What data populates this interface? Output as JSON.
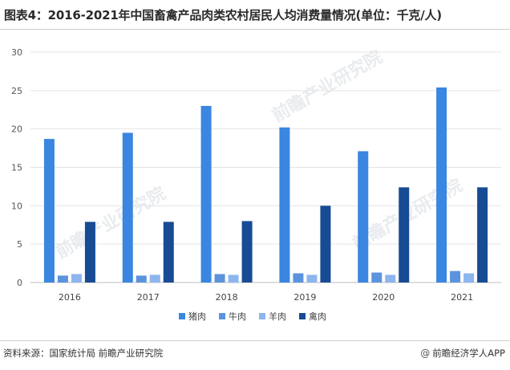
{
  "title": "图表4：2016-2021年中国畜禽产品肉类农村居民人均消费量情况(单位：千克/人)",
  "watermark": "前瞻产业研究院",
  "footer": {
    "source": "资料来源：国家统计局 前瞻产业研究院",
    "brand": "前瞻经济学人APP",
    "brand_icon": "at-icon"
  },
  "chart_data": {
    "type": "bar",
    "title": "图表4：2016-2021年中国畜禽产品肉类农村居民人均消费量情况(单位：千克/人)",
    "categories": [
      "2016",
      "2017",
      "2018",
      "2019",
      "2020",
      "2021"
    ],
    "series": [
      {
        "name": "猪肉",
        "color": "#3a86e0",
        "values": [
          18.7,
          19.5,
          23.0,
          20.2,
          17.1,
          25.4
        ]
      },
      {
        "name": "牛肉",
        "color": "#5b93dd",
        "values": [
          0.9,
          0.9,
          1.1,
          1.2,
          1.3,
          1.5
        ]
      },
      {
        "name": "羊肉",
        "color": "#8db5ee",
        "values": [
          1.1,
          1.0,
          1.0,
          1.0,
          1.0,
          1.2
        ]
      },
      {
        "name": "禽肉",
        "color": "#174b94",
        "values": [
          7.9,
          7.9,
          8.0,
          10.0,
          12.4,
          12.4
        ]
      }
    ],
    "ylim": [
      0,
      30
    ],
    "yticks": [
      0,
      5,
      10,
      15,
      20,
      25,
      30
    ],
    "grid": true,
    "legend": "bottom"
  }
}
